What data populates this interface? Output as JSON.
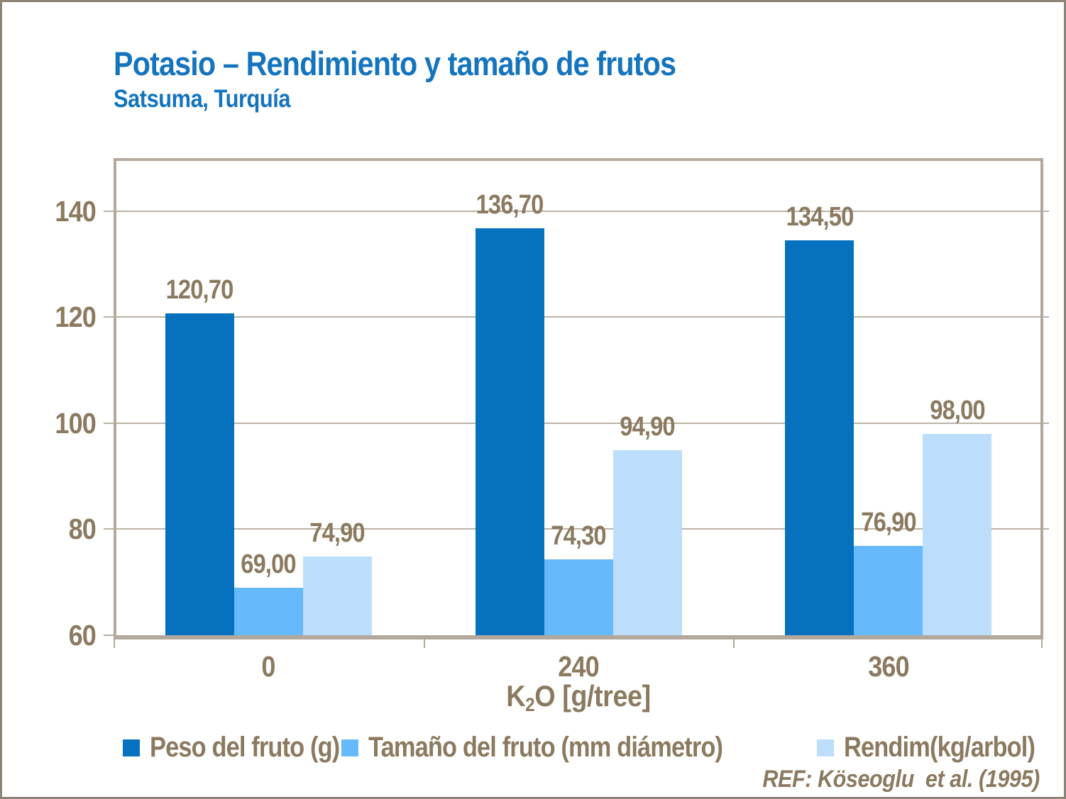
{
  "header": {
    "title": "Potasio – Rendimiento y tamaño de frutos",
    "subtitle": "Satsuma, Turquía"
  },
  "chart_data": {
    "type": "bar",
    "categories": [
      "0",
      "240",
      "360"
    ],
    "series": [
      {
        "name": "Peso del fruto (g)",
        "color": "#0571bf",
        "values": [
          120.7,
          136.7,
          134.5
        ],
        "labels": [
          "120,70",
          "136,70",
          "134,50"
        ]
      },
      {
        "name": "Tamaño del fruto (mm diámetro)",
        "color": "#66bafc",
        "values": [
          69.0,
          74.3,
          76.9
        ],
        "labels": [
          "69,00",
          "74,30",
          "76,90"
        ]
      },
      {
        "name": "Rendim(kg/arbol)",
        "color": "#bddefb",
        "values": [
          74.9,
          94.9,
          98.0
        ],
        "labels": [
          "74,90",
          "94,90",
          "98,00"
        ]
      }
    ],
    "title": "Potasio – Rendimiento y tamaño de frutos",
    "subtitle": "Satsuma, Turquía",
    "xlabel": "K2O [g/tree]",
    "xlabel_parts": {
      "prefix": "K",
      "sub": "2",
      "suffix": "O [g/tree]"
    },
    "ylabel": "",
    "ylim": [
      60,
      150
    ],
    "yticks": [
      60,
      80,
      100,
      120,
      140
    ],
    "grid": true,
    "legend_position": "bottom"
  },
  "footer": {
    "ref": "REF: Köseoglu  et al. (1995)"
  },
  "palette": {
    "title_blue": "#1474be",
    "axis_text_brown": "#8b7a5f",
    "gridline_tan": "#bcb2a4",
    "axis_frame_tan": "#b3a89c",
    "outer_frame": "#8d8477",
    "background": "#ffffff"
  }
}
